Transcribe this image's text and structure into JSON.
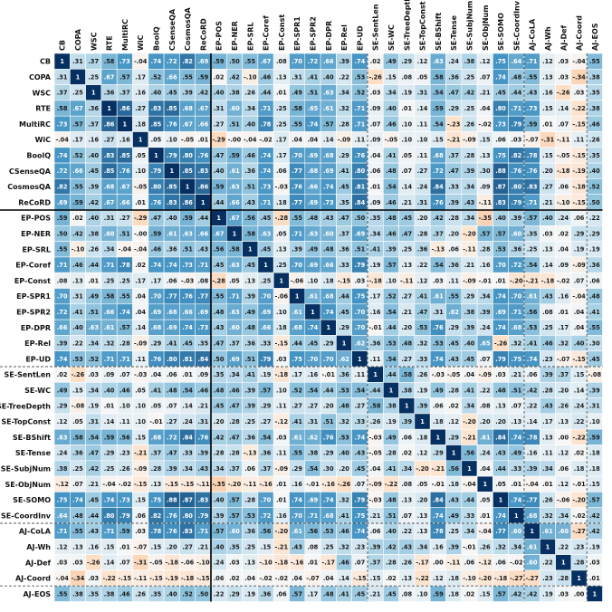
{
  "chart_data": {
    "type": "heatmap",
    "labels": [
      "CB",
      "COPA",
      "WSC",
      "RTE",
      "MultiRC",
      "WiC",
      "BoolQ",
      "CSenseQA",
      "CosmosQA",
      "ReCoRD",
      "EP-POS",
      "EP-NER",
      "EP-SRL",
      "EP-Coref",
      "EP-Const",
      "EP-SPR1",
      "EP-SPR2",
      "EP-DPR",
      "EP-Rel",
      "EP-UD",
      "SE-SentLen",
      "SE-WC",
      "SE-TreeDepth",
      "SE-TopConst",
      "SE-BShift",
      "SE-Tense",
      "SE-SubjNum",
      "SE-ObjNum",
      "SE-SOMO",
      "SE-CoordInv",
      "AJ-CoLA",
      "AJ-Wh",
      "AJ-Def",
      "AJ-Coord",
      "AJ-EOS"
    ],
    "value_range": [
      -1,
      1
    ],
    "colormap": "diverging: orange (negative) - white (0) - blue (positive)",
    "group_separators": {
      "solid_after": [
        10
      ],
      "dashed_after": [
        20,
        30,
        34
      ]
    },
    "values": [
      [
        1,
        ".31",
        ".37",
        ".58",
        ".73",
        "-.04",
        ".74",
        ".72",
        ".82",
        ".69",
        ".59",
        ".50",
        ".55",
        ".67",
        ".08",
        ".70",
        ".72",
        ".66",
        ".39",
        ".74",
        ".02",
        ".49",
        ".29",
        ".12",
        ".63",
        ".24",
        ".38",
        ".12",
        ".75",
        ".64",
        ".71",
        ".12",
        ".03",
        "-.04",
        ".55"
      ],
      [
        ".31",
        1,
        ".25",
        ".67",
        ".57",
        ".17",
        ".52",
        ".66",
        ".55",
        ".59",
        ".02",
        ".42",
        "-.10",
        ".46",
        ".13",
        ".31",
        ".41",
        ".40",
        ".22",
        ".53",
        "-.26",
        ".15",
        ".08",
        ".05",
        ".58",
        ".36",
        ".25",
        ".07",
        ".74",
        ".48",
        ".55",
        ".13",
        ".03",
        "-.34",
        ".38"
      ],
      [
        ".37",
        ".25",
        1,
        ".36",
        ".37",
        ".16",
        ".40",
        ".45",
        ".39",
        ".42",
        ".40",
        ".38",
        ".26",
        ".44",
        ".01",
        ".49",
        ".51",
        ".63",
        ".34",
        ".52",
        ".03",
        ".34",
        ".19",
        ".31",
        ".54",
        ".47",
        ".42",
        ".21",
        ".45",
        ".44",
        ".43",
        ".16",
        "-.26",
        ".03",
        ".35"
      ],
      [
        ".58",
        ".67",
        ".36",
        1,
        ".86",
        ".27",
        ".83",
        ".85",
        ".68",
        ".67",
        ".31",
        ".60",
        ".34",
        ".71",
        ".25",
        ".58",
        ".65",
        ".61",
        ".32",
        ".71",
        ".09",
        ".40",
        ".01",
        ".14",
        ".59",
        ".29",
        ".25",
        ".04",
        ".80",
        ".71",
        ".73",
        ".15",
        ".14",
        "-.22",
        ".38"
      ],
      [
        ".73",
        ".57",
        ".37",
        ".86",
        1,
        ".18",
        ".85",
        ".76",
        ".67",
        ".66",
        ".27",
        ".51",
        ".40",
        ".78",
        ".25",
        ".55",
        ".74",
        ".57",
        ".28",
        ".71",
        ".07",
        ".46",
        ".10",
        ".11",
        ".54",
        "-.23",
        ".26",
        "-.02",
        ".73",
        ".79",
        ".59",
        ".01",
        ".07",
        "-.15",
        ".46"
      ],
      [
        "-.04",
        ".17",
        ".16",
        ".27",
        ".16",
        1,
        ".05",
        ".10",
        "-.05",
        ".01",
        "-.29",
        "-.00",
        "-.04",
        "-.02",
        ".17",
        ".04",
        ".04",
        ".14",
        "-.09",
        ".11",
        ".09",
        "-.05",
        ".10",
        ".10",
        ".15",
        "-.21",
        "-.09",
        ".15",
        ".06",
        ".03",
        "-.07",
        "-.31",
        "-.11",
        ".11",
        ".26"
      ],
      [
        ".74",
        ".52",
        ".40",
        ".83",
        ".85",
        ".05",
        1,
        ".79",
        ".80",
        ".76",
        ".47",
        ".59",
        ".46",
        ".74",
        ".17",
        ".70",
        ".69",
        ".68",
        ".29",
        ".76",
        ".04",
        ".41",
        ".05",
        ".11",
        ".68",
        ".37",
        ".28",
        ".13",
        ".75",
        ".82",
        ".78",
        ".15",
        "-.05",
        "-.15",
        ".35"
      ],
      [
        ".72",
        ".66",
        ".45",
        ".85",
        ".76",
        ".10",
        ".79",
        1,
        ".85",
        ".83",
        ".40",
        ".61",
        ".36",
        ".74",
        ".06",
        ".77",
        ".68",
        ".69",
        ".41",
        ".80",
        ".06",
        ".48",
        ".07",
        ".27",
        ".72",
        ".47",
        ".39",
        ".30",
        ".88",
        ".76",
        ".76",
        ".20",
        "-.18",
        "-.19",
        ".40"
      ],
      [
        ".82",
        ".55",
        ".39",
        ".68",
        ".67",
        "-.05",
        ".80",
        ".85",
        1,
        ".86",
        ".59",
        ".63",
        ".51",
        ".73",
        "-.03",
        ".76",
        ".66",
        ".74",
        ".45",
        ".81",
        ".01",
        ".54",
        ".14",
        ".24",
        ".84",
        ".33",
        ".34",
        ".09",
        ".87",
        ".80",
        ".83",
        ".27",
        ".06",
        "-.18",
        ".52"
      ],
      [
        ".69",
        ".59",
        ".42",
        ".67",
        ".66",
        ".01",
        ".76",
        ".83",
        ".86",
        1,
        ".44",
        ".66",
        ".43",
        ".71",
        ".18",
        ".77",
        ".69",
        ".73",
        ".35",
        ".84",
        ".09",
        ".46",
        ".21",
        ".31",
        ".76",
        ".39",
        ".43",
        "-.11",
        ".83",
        ".79",
        ".71",
        ".21",
        "-.10",
        "-.15",
        ".50"
      ],
      [
        ".59",
        ".02",
        ".40",
        ".31",
        ".27",
        "-.29",
        ".47",
        ".40",
        ".59",
        ".44",
        1,
        ".67",
        ".56",
        ".45",
        "-.28",
        ".55",
        ".48",
        ".43",
        ".47",
        ".50",
        ".35",
        ".48",
        ".45",
        ".20",
        ".42",
        ".28",
        ".34",
        "-.35",
        ".40",
        ".39",
        ".57",
        ".40",
        ".24",
        ".06",
        ".22"
      ],
      [
        ".50",
        ".42",
        ".38",
        ".60",
        ".51",
        "-.00",
        ".59",
        ".61",
        ".63",
        ".66",
        ".67",
        1,
        ".58",
        ".63",
        ".05",
        ".71",
        ".63",
        ".60",
        ".37",
        ".69",
        ".34",
        ".46",
        ".47",
        ".28",
        ".37",
        ".20",
        "-.20",
        ".57",
        ".57",
        ".60",
        ".35",
        ".03",
        ".02",
        ".29",
        ".29"
      ],
      [
        ".55",
        "-.10",
        ".26",
        ".34",
        "-.04",
        "-.04",
        ".46",
        ".36",
        ".51",
        ".43",
        ".56",
        ".58",
        1,
        ".45",
        ".13",
        ".39",
        ".49",
        ".48",
        ".36",
        ".51",
        ".41",
        ".39",
        ".25",
        ".36",
        "-.13",
        ".06",
        "-.11",
        ".28",
        ".53",
        ".36",
        ".25",
        ".13",
        ".04",
        ".19",
        ".19"
      ],
      [
        ".71",
        ".46",
        ".44",
        ".71",
        ".78",
        ".02",
        ".74",
        ".74",
        ".73",
        ".71",
        ".45",
        ".63",
        ".45",
        1,
        ".25",
        ".70",
        ".69",
        ".66",
        ".33",
        ".79",
        ".19",
        ".57",
        ".13",
        ".22",
        ".54",
        ".36",
        ".21",
        ".16",
        ".70",
        ".72",
        ".54",
        ".14",
        ".09",
        "-.09",
        ".36"
      ],
      [
        ".08",
        ".13",
        ".01",
        ".25",
        ".25",
        ".17",
        ".17",
        ".06",
        "-.03",
        ".08",
        "-.28",
        ".05",
        ".13",
        ".25",
        1,
        "-.06",
        ".10",
        ".18",
        "-.15",
        ".03",
        "-.18",
        ".10",
        "-.11",
        ".12",
        ".03",
        ".11",
        "-.09",
        "-.01",
        ".01",
        "-.20",
        "-.21",
        "-.18",
        "-.02",
        ".07",
        ".06"
      ],
      [
        ".70",
        ".31",
        ".49",
        ".58",
        ".55",
        ".04",
        ".70",
        ".77",
        ".76",
        ".77",
        ".55",
        ".71",
        ".39",
        ".70",
        "-.06",
        1,
        ".61",
        ".68",
        ".44",
        ".75",
        ".17",
        ".52",
        ".27",
        ".41",
        ".61",
        ".55",
        ".29",
        ".34",
        ".74",
        ".70",
        ".61",
        ".43",
        ".16",
        "-.04",
        ".48"
      ],
      [
        ".72",
        ".41",
        ".51",
        ".66",
        ".74",
        ".04",
        ".69",
        ".68",
        ".66",
        ".69",
        ".48",
        ".63",
        ".49",
        ".69",
        ".10",
        ".61",
        1,
        ".74",
        ".45",
        ".70",
        ".16",
        ".54",
        ".21",
        ".47",
        ".31",
        ".62",
        ".38",
        ".39",
        ".69",
        ".71",
        ".56",
        ".08",
        ".01",
        ".04",
        ".41"
      ],
      [
        ".66",
        ".40",
        ".63",
        ".61",
        ".57",
        ".14",
        ".68",
        ".69",
        ".74",
        ".73",
        ".43",
        ".60",
        ".48",
        ".66",
        ".18",
        ".68",
        ".74",
        1,
        ".29",
        ".70",
        "-.01",
        ".44",
        ".20",
        ".53",
        ".76",
        ".29",
        ".39",
        ".24",
        ".74",
        ".68",
        ".53",
        ".25",
        ".17",
        ".04",
        ".55"
      ],
      [
        ".39",
        ".22",
        ".34",
        ".32",
        ".28",
        "-.09",
        ".29",
        ".41",
        ".45",
        ".35",
        ".47",
        ".37",
        ".36",
        ".33",
        "-.15",
        ".44",
        ".45",
        ".29",
        1,
        ".62",
        ".36",
        ".53",
        ".48",
        ".32",
        ".53",
        ".45",
        ".40",
        ".65",
        "-.26",
        ".32",
        ".41",
        ".46",
        ".32",
        ".40",
        ".30"
      ],
      [
        ".74",
        ".53",
        ".52",
        ".71",
        ".71",
        ".11",
        ".76",
        ".80",
        ".81",
        ".84",
        ".50",
        ".69",
        ".51",
        ".79",
        ".03",
        ".75",
        ".70",
        ".70",
        ".62",
        1,
        ".11",
        ".54",
        ".27",
        ".33",
        ".74",
        ".43",
        ".45",
        ".07",
        ".79",
        ".75",
        ".74",
        ".23",
        "-.07",
        "-.15",
        ".45"
      ],
      [
        ".02",
        "-.26",
        ".03",
        ".09",
        ".07",
        "-.03",
        ".04",
        ".06",
        ".01",
        ".09",
        ".35",
        ".34",
        ".41",
        ".19",
        "-.18",
        ".17",
        ".16",
        "-.01",
        ".36",
        ".11",
        1,
        ".44",
        ".58",
        ".26",
        "-.03",
        "-.05",
        ".04",
        "-.09",
        ".03",
        ".21",
        ".06",
        ".39",
        ".37",
        ".15",
        "-.08"
      ],
      [
        ".49",
        ".15",
        ".34",
        ".40",
        ".46",
        ".05",
        ".41",
        ".48",
        ".54",
        ".46",
        ".48",
        ".46",
        ".39",
        ".57",
        ".10",
        ".52",
        ".54",
        ".44",
        ".53",
        ".54",
        ".44",
        1,
        ".38",
        ".19",
        ".49",
        ".28",
        ".41",
        ".22",
        ".48",
        ".51",
        ".42",
        ".28",
        ".20",
        ".14",
        ".39"
      ],
      [
        ".29",
        "-.08",
        ".19",
        ".01",
        ".10",
        ".10",
        ".05",
        ".07",
        ".14",
        ".21",
        ".45",
        ".47",
        ".39",
        ".29",
        ".11",
        ".27",
        ".27",
        ".20",
        ".48",
        ".27",
        ".58",
        ".38",
        1,
        ".39",
        ".06",
        ".02",
        ".34",
        ".08",
        ".13",
        ".07",
        ".22",
        ".43",
        ".26",
        ".24",
        ".31"
      ],
      [
        ".12",
        ".05",
        ".31",
        ".14",
        ".11",
        ".10",
        "-.01",
        ".27",
        ".24",
        ".31",
        ".20",
        ".28",
        ".25",
        ".27",
        "-.12",
        ".41",
        ".31",
        ".51",
        ".32",
        ".33",
        ".26",
        ".19",
        ".39",
        1,
        ".18",
        ".12",
        "-.20",
        ".20",
        ".20",
        ".13",
        ".14",
        ".17",
        ".13",
        ".22",
        ".10"
      ],
      [
        ".63",
        ".58",
        ".54",
        ".59",
        ".56",
        ".15",
        ".68",
        ".72",
        ".84",
        ".76",
        ".42",
        ".47",
        ".36",
        ".54",
        ".03",
        ".61",
        ".62",
        ".76",
        ".53",
        ".74",
        "-.03",
        ".49",
        ".06",
        ".18",
        1,
        ".29",
        "-.21",
        ".61",
        ".84",
        ".74",
        ".78",
        ".13",
        ".00",
        "-.22",
        ".59"
      ],
      [
        ".24",
        ".36",
        ".47",
        ".29",
        ".23",
        "-.21",
        ".37",
        ".47",
        ".33",
        ".39",
        ".28",
        ".28",
        "-.13",
        ".36",
        ".11",
        ".55",
        ".38",
        ".29",
        ".40",
        ".43",
        "-.05",
        ".28",
        ".02",
        ".12",
        ".29",
        1,
        ".56",
        ".24",
        ".43",
        ".49",
        ".16",
        ".11",
        ".12",
        ".02",
        ".18"
      ],
      [
        ".38",
        ".25",
        ".42",
        ".25",
        ".26",
        "-.09",
        ".28",
        ".39",
        ".34",
        ".43",
        ".34",
        ".37",
        ".06",
        ".37",
        "-.09",
        ".29",
        ".54",
        ".30",
        ".20",
        ".45",
        ".04",
        ".41",
        ".34",
        "-.20",
        "-.21",
        ".56",
        1,
        ".04",
        ".44",
        ".33",
        ".39",
        ".34",
        ".06",
        ".18",
        ".18"
      ],
      [
        "-.12",
        ".07",
        ".21",
        "-.04",
        "-.02",
        "-.15",
        ".13",
        "-.15",
        "-.15",
        "-.11",
        "-.35",
        "-.20",
        "-.11",
        "-.16",
        ".01",
        ".16",
        "-.01",
        "-.16",
        "-.26",
        ".07",
        "-.09",
        "-.22",
        ".08",
        ".05",
        "-.01",
        ".18",
        "-.04",
        1,
        ".05",
        ".01",
        "-.04",
        ".01",
        ".12",
        "-.01",
        ".15"
      ],
      [
        ".75",
        ".74",
        ".45",
        ".74",
        ".73",
        ".15",
        ".75",
        ".88",
        ".87",
        ".83",
        ".40",
        ".57",
        ".28",
        ".70",
        ".01",
        ".74",
        ".69",
        ".74",
        ".32",
        ".79",
        "-.03",
        ".48",
        ".13",
        ".20",
        ".84",
        ".43",
        ".44",
        ".05",
        1,
        ".74",
        ".77",
        ".26",
        "-.06",
        "-.20",
        ".57"
      ],
      [
        ".64",
        ".48",
        ".44",
        ".80",
        ".79",
        ".06",
        ".82",
        ".76",
        ".80",
        ".79",
        ".39",
        ".57",
        ".53",
        ".72",
        ".16",
        ".70",
        ".71",
        ".68",
        ".41",
        ".75",
        ".21",
        ".51",
        ".07",
        ".13",
        ".74",
        ".49",
        ".33",
        ".01",
        ".74",
        1,
        ".68",
        ".32",
        ".34",
        "-.02",
        ".42"
      ],
      [
        ".71",
        ".55",
        ".43",
        ".71",
        ".59",
        ".03",
        ".78",
        ".76",
        ".83",
        ".71",
        ".57",
        ".60",
        ".36",
        ".56",
        "-.20",
        ".61",
        ".56",
        ".53",
        ".46",
        ".74",
        ".06",
        ".40",
        ".22",
        ".13",
        ".78",
        ".25",
        ".34",
        "-.04",
        ".77",
        ".60",
        1,
        ".61",
        ".60",
        "-.27",
        ".42"
      ],
      [
        ".12",
        ".13",
        ".16",
        ".15",
        ".01",
        "-.07",
        ".15",
        ".20",
        ".27",
        ".21",
        ".40",
        ".35",
        ".25",
        ".15",
        "-.21",
        ".43",
        ".08",
        ".25",
        ".32",
        ".23",
        ".39",
        ".42",
        ".43",
        ".34",
        ".16",
        ".39",
        "-.01",
        ".26",
        ".32",
        ".34",
        ".61",
        1,
        ".22",
        ".23",
        ".19"
      ],
      [
        ".03",
        ".03",
        "-.26",
        ".14",
        ".07",
        "-.31",
        "-.05",
        "-.18",
        "-.06",
        "-.10",
        ".24",
        ".03",
        ".13",
        "-.10",
        "-.18",
        "-.16",
        ".01",
        "-.17",
        ".46",
        ".07",
        ".37",
        ".28",
        ".26",
        "-.17",
        ".00",
        "-.11",
        ".06",
        "-.12",
        ".06",
        "-.02",
        ".60",
        ".22",
        1,
        ".28",
        ".03"
      ],
      [
        "-.04",
        "-.34",
        ".03",
        "-.22",
        "-.15",
        "-.11",
        "-.15",
        "-.19",
        "-.18",
        "-.15",
        ".06",
        ".02",
        ".04",
        "-.02",
        "-.02",
        ".04",
        "-.07",
        ".04",
        ".14",
        "-.15",
        ".15",
        ".02",
        ".13",
        "-.22",
        ".12",
        ".18",
        "-.10",
        "-.20",
        "-.18",
        "-.27",
        "-.27",
        ".23",
        ".28",
        1,
        ".01"
      ],
      [
        ".55",
        ".38",
        ".35",
        ".38",
        ".46",
        ".26",
        ".35",
        ".40",
        ".52",
        ".50",
        ".22",
        ".29",
        ".19",
        ".36",
        ".06",
        ".57",
        ".17",
        ".48",
        ".41",
        ".45",
        ".21",
        ".45",
        ".08",
        ".10",
        ".59",
        ".18",
        ".02",
        ".15",
        ".57",
        ".42",
        ".42",
        ".19",
        ".03",
        ".00",
        1
      ]
    ]
  }
}
